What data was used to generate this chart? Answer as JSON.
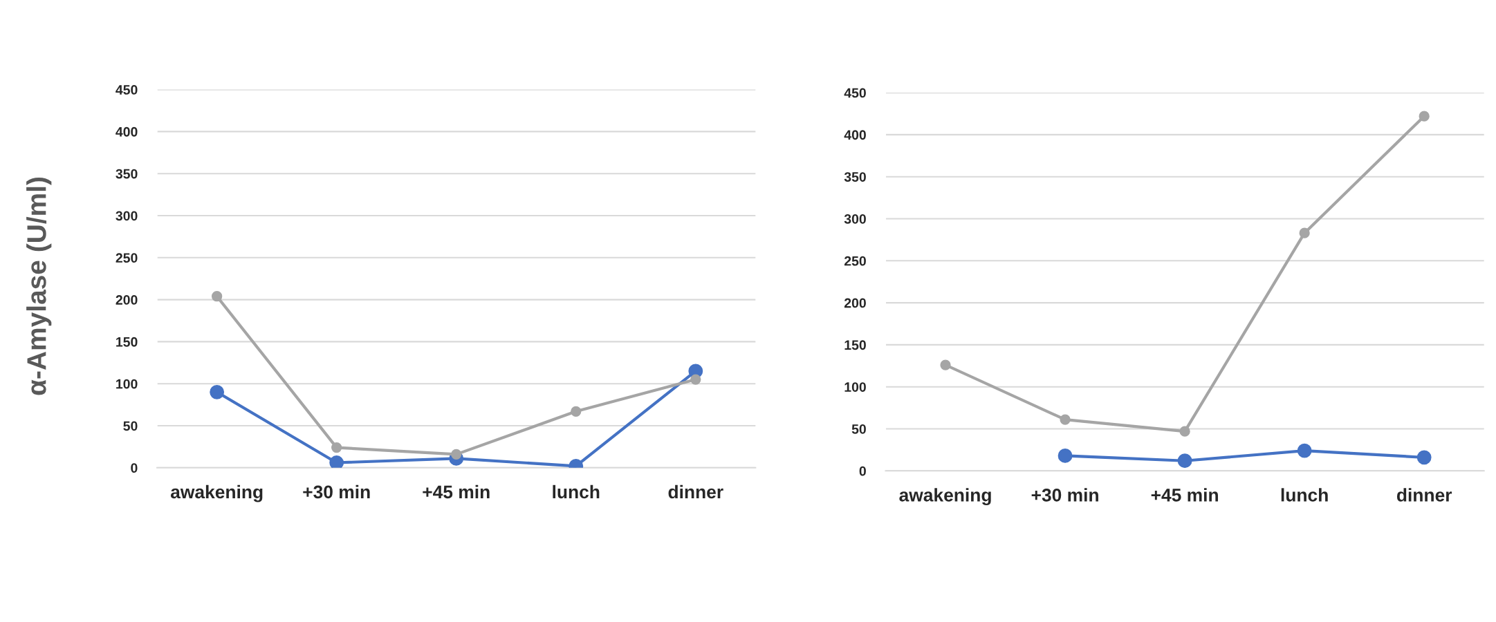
{
  "chart_data": [
    {
      "type": "line",
      "ylabel": "α-Amylase (U/ml)",
      "categories": [
        "awakening",
        "+30 min",
        "+45 min",
        "lunch",
        "dinner"
      ],
      "series": [
        {
          "color": "#4472c4",
          "values": [
            90,
            6,
            11,
            2,
            115
          ]
        },
        {
          "color": "#a5a5a5",
          "values": [
            204,
            24,
            16,
            67,
            105
          ]
        }
      ],
      "ylim": [
        0,
        450
      ],
      "yticks": [
        0,
        50,
        100,
        150,
        200,
        250,
        300,
        350,
        400,
        450
      ],
      "grid": "y",
      "legend": false,
      "marker": "circle",
      "line_style": "solid"
    },
    {
      "type": "line",
      "categories": [
        "awakening",
        "+30 min",
        "+45 min",
        "lunch",
        "dinner"
      ],
      "series": [
        {
          "color": "#4472c4",
          "values": [
            null,
            18,
            12,
            24,
            16
          ]
        },
        {
          "color": "#a5a5a5",
          "values": [
            126,
            61,
            47,
            283,
            422
          ]
        }
      ],
      "ylim": [
        0,
        450
      ],
      "yticks": [
        0,
        50,
        100,
        150,
        200,
        250,
        300,
        350,
        400,
        450
      ],
      "grid": "y",
      "legend": false,
      "marker": "circle",
      "line_style": "solid"
    }
  ]
}
